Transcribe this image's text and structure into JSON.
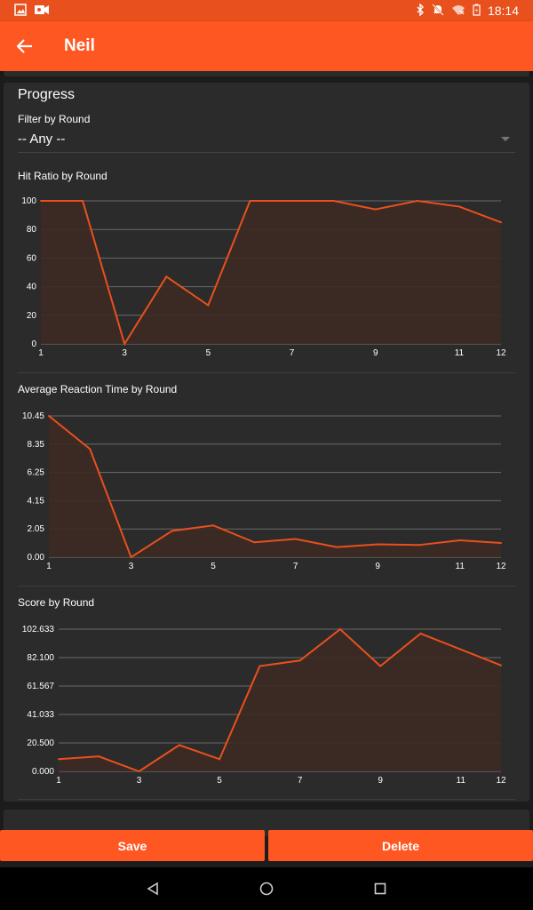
{
  "statusbar": {
    "time": "18:14"
  },
  "toolbar": {
    "title": "Neil"
  },
  "card": {
    "title": "Progress",
    "filter_label": "Filter by Round",
    "filter_value": "-- Any --"
  },
  "colors": {
    "accent": "#ff5722",
    "line": "#e8501d",
    "fill": "#3d2a24",
    "card": "#2b2b2b"
  },
  "chart_data": [
    {
      "type": "area",
      "title": "Hit Ratio by Round",
      "x": [
        1,
        2,
        3,
        4,
        5,
        6,
        7,
        8,
        9,
        10,
        11,
        12
      ],
      "values": [
        100,
        100,
        0,
        47,
        27,
        100,
        100,
        100,
        94,
        100,
        96,
        85
      ],
      "ylim": [
        0,
        100
      ],
      "yticks": [
        "0",
        "20",
        "40",
        "60",
        "80",
        "100"
      ],
      "xticks": [
        "1",
        "3",
        "5",
        "7",
        "9",
        "11",
        "12"
      ],
      "grid": true
    },
    {
      "type": "area",
      "title": "Average Reaction Time by Round",
      "x": [
        1,
        2,
        3,
        4,
        5,
        6,
        7,
        8,
        9,
        10,
        11,
        12
      ],
      "values": [
        10.45,
        8.0,
        0.0,
        1.95,
        2.35,
        1.1,
        1.35,
        0.75,
        0.95,
        0.9,
        1.25,
        1.05
      ],
      "ylim": [
        0,
        10.45
      ],
      "yticks": [
        "0.00",
        "2.05",
        "4.15",
        "6.25",
        "8.35",
        "10.45"
      ],
      "xticks": [
        "1",
        "3",
        "5",
        "7",
        "9",
        "11",
        "12"
      ],
      "grid": true
    },
    {
      "type": "area",
      "title": "Score by Round",
      "x": [
        1,
        2,
        3,
        4,
        5,
        6,
        7,
        8,
        9,
        10,
        11,
        12
      ],
      "values": [
        8.8,
        10.8,
        0,
        19.0,
        8.8,
        76.0,
        80.0,
        102.6,
        76.0,
        99.5,
        88.0,
        76.5
      ],
      "ylim": [
        0,
        102.633
      ],
      "yticks": [
        "0.000",
        "20.500",
        "41.033",
        "61.567",
        "82.100",
        "102.633"
      ],
      "xticks": [
        "1",
        "3",
        "5",
        "7",
        "9",
        "11",
        "12"
      ],
      "grid": true
    }
  ],
  "buttons": {
    "save": "Save",
    "delete": "Delete"
  }
}
